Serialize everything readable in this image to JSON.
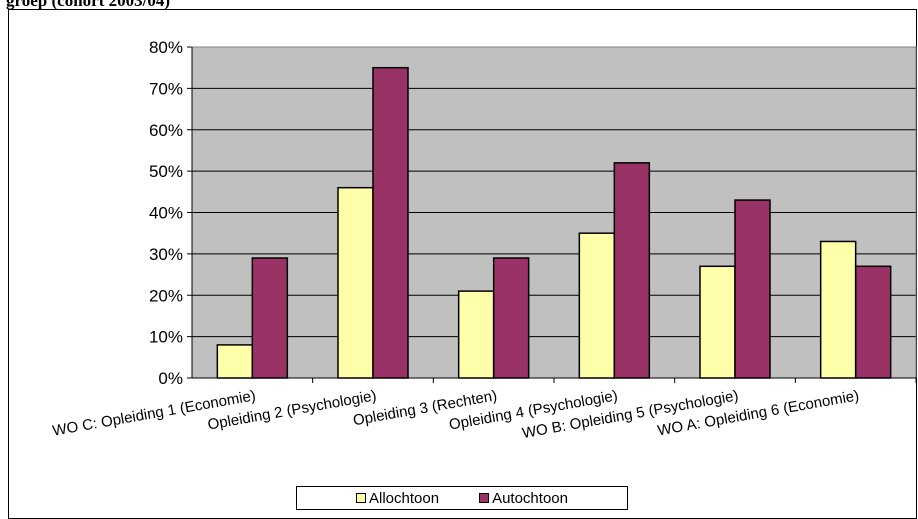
{
  "header": {
    "title_fragment": "groep (cohort 2003/04)"
  },
  "colors": {
    "allochtoon": "#FFFFAA",
    "autochtoon": "#993366",
    "plot_background": "#C0C0C0"
  },
  "chart_data": {
    "type": "bar",
    "title": "",
    "xlabel": "",
    "ylabel": "",
    "ylim": [
      0,
      0.8
    ],
    "y_ticks": [
      "0%",
      "10%",
      "20%",
      "30%",
      "40%",
      "50%",
      "60%",
      "70%",
      "80%"
    ],
    "grid": true,
    "legend_position": "bottom",
    "categories": [
      "WO C: Opleiding 1 (Economie)",
      "Opleiding 2 (Psychologie)",
      "Opleiding 3 (Rechten)",
      "Opleiding 4 (Psychologie)",
      "WO B: Opleiding 5 (Psychologie)",
      "WO A: Opleiding 6 (Economie)"
    ],
    "series": [
      {
        "name": "Allochtoon",
        "values": [
          0.08,
          0.46,
          0.21,
          0.35,
          0.27,
          0.33
        ]
      },
      {
        "name": "Autochtoon",
        "values": [
          0.29,
          0.75,
          0.29,
          0.52,
          0.43,
          0.27
        ]
      }
    ]
  }
}
